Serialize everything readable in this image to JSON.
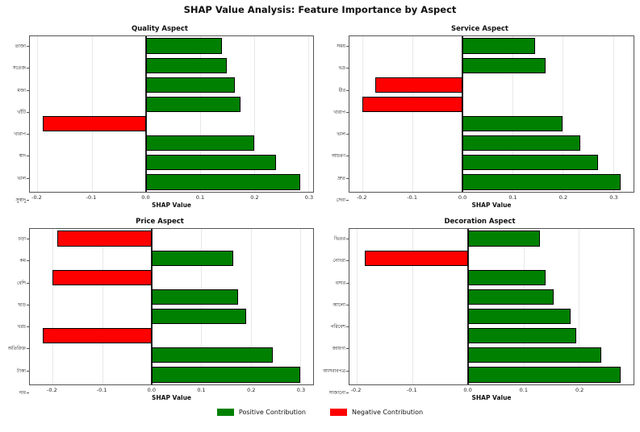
{
  "figure_title": "SHAP Value Analysis: Feature Importance by Aspect",
  "legend": {
    "positive_label": "Positive Contribution",
    "negative_label": "Negative Contribution"
  },
  "colors": {
    "positive": "#008000",
    "negative": "#ff0000",
    "bar_edge": "#000000",
    "grid": "#e8e8e8",
    "zero_line": "#222222"
  },
  "chart_data": [
    {
      "type": "bar",
      "orientation": "horizontal",
      "title": "Quality Aspect",
      "xlabel": "SHAP Value",
      "categories": [
        "তাজা",
        "সতেজ",
        "মজা",
        "খাঁটি",
        "খারাপ",
        "স্বাদ",
        "ভাল",
        "সুস্বাদু"
      ],
      "values": [
        0.14,
        0.15,
        0.165,
        0.175,
        -0.19,
        0.2,
        0.24,
        0.285
      ],
      "xticks": [
        "-0.2",
        "-0.1",
        "0.0",
        "0.1",
        "0.2",
        "0.3"
      ],
      "xlim": [
        -0.214,
        0.309
      ],
      "grid": true,
      "legend_position": "none"
    },
    {
      "type": "bar",
      "orientation": "horizontal",
      "title": "Service Aspect",
      "xlabel": "SHAP Value",
      "categories": [
        "সময়",
        "ভদ্র",
        "ধীর",
        "খারাপ",
        "ভাল",
        "আচরণ",
        "দ্রুত",
        "সেবা"
      ],
      "values": [
        0.145,
        0.165,
        -0.175,
        -0.2,
        0.2,
        0.235,
        0.27,
        0.315
      ],
      "xticks": [
        "-0.2",
        "-0.1",
        "0.0",
        "0.1",
        "0.2",
        "0.3"
      ],
      "xlim": [
        -0.226,
        0.341
      ],
      "grid": true,
      "legend_position": "none"
    },
    {
      "type": "bar",
      "orientation": "horizontal",
      "title": "Price Aspect",
      "xlabel": "SHAP Value",
      "categories": [
        "চড়া",
        "কম",
        "বেশি",
        "ছাড়",
        "খরচ",
        "অতিরিক্ত",
        "টাকা",
        "দাম"
      ],
      "values": [
        -0.19,
        0.165,
        -0.2,
        0.175,
        0.19,
        -0.22,
        0.245,
        0.3
      ],
      "xticks": [
        "-0.2",
        "-0.1",
        "0.0",
        "0.1",
        "0.2",
        "0.3"
      ],
      "xlim": [
        -0.246,
        0.326
      ],
      "grid": true,
      "legend_position": "none"
    },
    {
      "type": "bar",
      "orientation": "horizontal",
      "title": "Decoration Aspect",
      "xlabel": "SHAP Value",
      "categories": [
        "ভিতর",
        "নোংরা",
        "বসার",
        "আলো",
        "পরিবেশ",
        "জায়গা",
        "আসবাবপত্র",
        "সাজানো"
      ],
      "values": [
        0.13,
        -0.185,
        0.14,
        0.155,
        0.185,
        0.195,
        0.24,
        0.275
      ],
      "xticks": [
        "-0.2",
        "-0.1",
        "0.0",
        "0.1",
        "0.2"
      ],
      "xlim": [
        -0.213,
        0.298
      ],
      "grid": true,
      "legend_position": "none"
    }
  ]
}
